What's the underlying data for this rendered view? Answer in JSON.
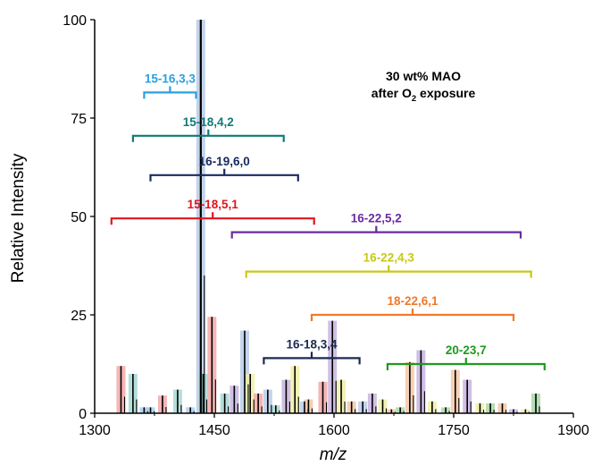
{
  "chart_data": {
    "type": "bar",
    "title": "",
    "xlabel": "m/z",
    "ylabel": "Relative Intensity",
    "xlim": [
      1300,
      1900
    ],
    "ylim": [
      0,
      100
    ],
    "xticks": [
      1300,
      1450,
      1600,
      1750,
      1900
    ],
    "yticks": [
      0,
      25,
      50,
      75,
      100
    ],
    "grid": false,
    "annotation": {
      "line1": "30 wt% MAO",
      "line2_before": "after O",
      "line2_sub": "2",
      "line2_after": " exposure"
    },
    "stick_color": "#000000",
    "peaks": [
      {
        "mz": 1333,
        "intensity": 12,
        "color": "#f4a8a8"
      },
      {
        "mz": 1348,
        "intensity": 10,
        "color": "#a8d8d4"
      },
      {
        "mz": 1362,
        "intensity": 1.5,
        "color": "#a8d0f0"
      },
      {
        "mz": 1370,
        "intensity": 1.5,
        "color": "#a8d0f0"
      },
      {
        "mz": 1385,
        "intensity": 4.5,
        "color": "#f4a8a8"
      },
      {
        "mz": 1404,
        "intensity": 6,
        "color": "#a8d8d4"
      },
      {
        "mz": 1420,
        "intensity": 1.5,
        "color": "#a8d0f0"
      },
      {
        "mz": 1433,
        "intensity": 100,
        "color": "#b8cce8"
      },
      {
        "mz": 1436,
        "intensity": 10,
        "color": "#a8d8d4"
      },
      {
        "mz": 1447,
        "intensity": 24.5,
        "color": "#f4a8a8"
      },
      {
        "mz": 1463,
        "intensity": 5,
        "color": "#a8d8d4"
      },
      {
        "mz": 1475,
        "intensity": 7,
        "color": "#c8b4e0"
      },
      {
        "mz": 1488,
        "intensity": 21,
        "color": "#b8cce8"
      },
      {
        "mz": 1495,
        "intensity": 10,
        "color": "#f0f0a8"
      },
      {
        "mz": 1505,
        "intensity": 5,
        "color": "#f4a8a8"
      },
      {
        "mz": 1517,
        "intensity": 6,
        "color": "#b8cce8"
      },
      {
        "mz": 1527,
        "intensity": 2,
        "color": "#a8d8d4"
      },
      {
        "mz": 1540,
        "intensity": 8.5,
        "color": "#c8b4e0"
      },
      {
        "mz": 1551,
        "intensity": 12,
        "color": "#f0f0a8"
      },
      {
        "mz": 1563,
        "intensity": 3,
        "color": "#b8cce8"
      },
      {
        "mz": 1568,
        "intensity": 3.5,
        "color": "#f4c8a8"
      },
      {
        "mz": 1586,
        "intensity": 8,
        "color": "#f4a8a8"
      },
      {
        "mz": 1598,
        "intensity": 23.5,
        "color": "#c8b4e0"
      },
      {
        "mz": 1609,
        "intensity": 8.5,
        "color": "#f0f0a8"
      },
      {
        "mz": 1622,
        "intensity": 3,
        "color": "#f4c8a8"
      },
      {
        "mz": 1636,
        "intensity": 3,
        "color": "#b8cce8"
      },
      {
        "mz": 1648,
        "intensity": 5,
        "color": "#c8b4e0"
      },
      {
        "mz": 1661,
        "intensity": 3.5,
        "color": "#f0f0a8"
      },
      {
        "mz": 1672,
        "intensity": 1,
        "color": "#f4c8a8"
      },
      {
        "mz": 1683,
        "intensity": 1.5,
        "color": "#a8d8a8"
      },
      {
        "mz": 1695,
        "intensity": 13,
        "color": "#f4c8a8"
      },
      {
        "mz": 1709,
        "intensity": 16,
        "color": "#c8b4e0"
      },
      {
        "mz": 1723,
        "intensity": 3,
        "color": "#f0f0a8"
      },
      {
        "mz": 1740,
        "intensity": 1.5,
        "color": "#a8d8a8"
      },
      {
        "mz": 1752,
        "intensity": 11,
        "color": "#f4c8a8"
      },
      {
        "mz": 1767,
        "intensity": 8.5,
        "color": "#c8b4e0"
      },
      {
        "mz": 1783,
        "intensity": 2.5,
        "color": "#f0f0a8"
      },
      {
        "mz": 1796,
        "intensity": 2.5,
        "color": "#a8d8a8"
      },
      {
        "mz": 1811,
        "intensity": 2.5,
        "color": "#f4c8a8"
      },
      {
        "mz": 1825,
        "intensity": 1,
        "color": "#c8b4e0"
      },
      {
        "mz": 1840,
        "intensity": 1,
        "color": "#f0f0a8"
      },
      {
        "mz": 1853,
        "intensity": 5,
        "color": "#a8d8a8"
      }
    ],
    "series": [
      {
        "label": "15-16,3,3",
        "color": "#29a0e0",
        "x_start": 1362,
        "x_end": 1427,
        "y": 81.5
      },
      {
        "label": "15-18,4,2",
        "color": "#0f7a76",
        "x_start": 1348,
        "x_end": 1537,
        "y": 70.5
      },
      {
        "label": "16-19,6,0",
        "color": "#1a2a60",
        "x_start": 1370,
        "x_end": 1555,
        "y": 60.5
      },
      {
        "label": "15-18,5,1",
        "color": "#e0141e",
        "x_start": 1321,
        "x_end": 1575,
        "y": 49.5
      },
      {
        "label": "16-22,5,2",
        "color": "#6a2aa0",
        "x_start": 1472,
        "x_end": 1834,
        "y": 46
      },
      {
        "label": "16-22,4,3",
        "color": "#c8c814",
        "x_start": 1490,
        "x_end": 1847,
        "y": 36
      },
      {
        "label": "18-22,6,1",
        "color": "#f07828",
        "x_start": 1572,
        "x_end": 1825,
        "y": 25
      },
      {
        "label": "16-18,3,4",
        "color": "#1a2a52",
        "x_start": 1512,
        "x_end": 1632,
        "y": 14
      },
      {
        "label": "20-23,7",
        "color": "#1e9a1e",
        "x_start": 1667,
        "x_end": 1864,
        "y": 12.5
      }
    ]
  }
}
